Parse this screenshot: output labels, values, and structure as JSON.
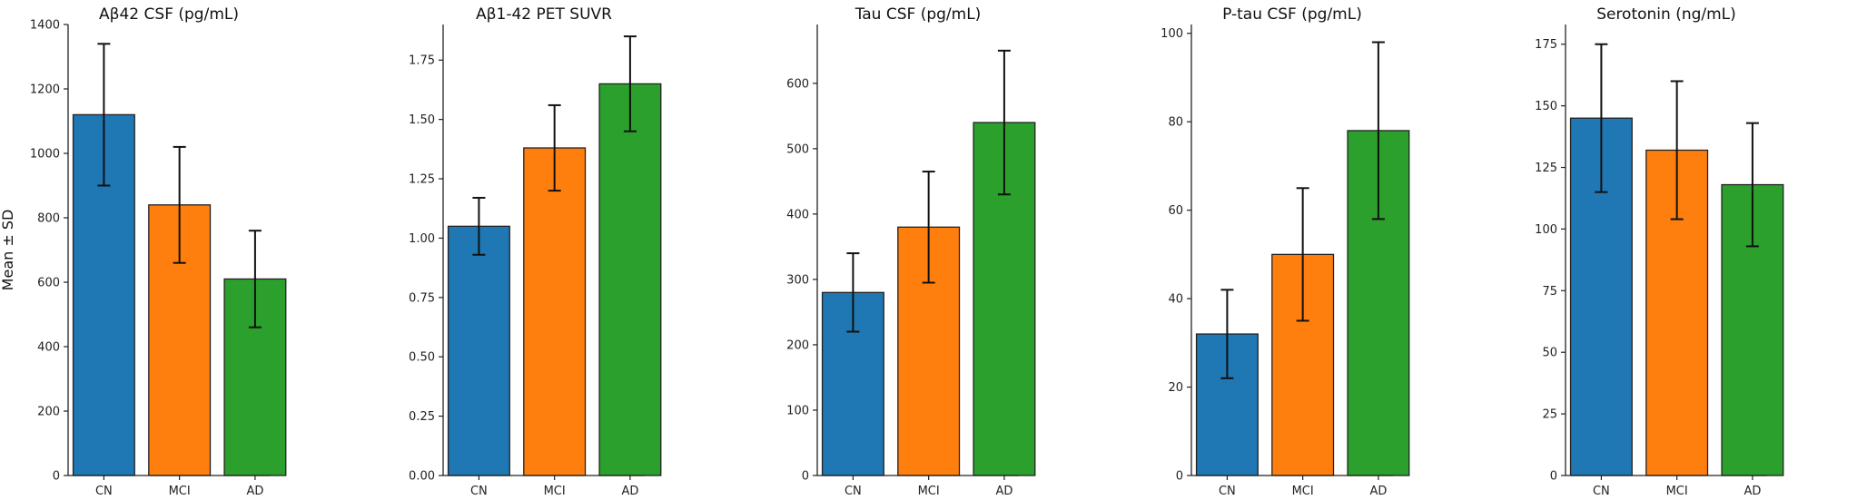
{
  "chart_data": [
    {
      "type": "bar",
      "title": "Aβ42 CSF (pg/mL)",
      "ylabel": "Mean ± SD",
      "categories": [
        "CN",
        "MCI",
        "AD"
      ],
      "values": [
        1120,
        840,
        610
      ],
      "errors": [
        220,
        180,
        150
      ],
      "ylim": [
        0,
        1400
      ],
      "yticks": [
        0,
        200,
        400,
        600,
        800,
        1000,
        1200,
        1400
      ],
      "ytick_labels": [
        "0",
        "200",
        "400",
        "600",
        "800",
        "1000",
        "1200",
        "1400"
      ]
    },
    {
      "type": "bar",
      "title": "Aβ1-42 PET SUVR",
      "ylabel": "",
      "categories": [
        "CN",
        "MCI",
        "AD"
      ],
      "values": [
        1.05,
        1.38,
        1.65
      ],
      "errors": [
        0.12,
        0.18,
        0.2
      ],
      "ylim": [
        0,
        1.9
      ],
      "yticks": [
        0,
        0.25,
        0.5,
        0.75,
        1.0,
        1.25,
        1.5,
        1.75
      ],
      "ytick_labels": [
        "0.00",
        "0.25",
        "0.50",
        "0.75",
        "1.00",
        "1.25",
        "1.50",
        "1.75"
      ]
    },
    {
      "type": "bar",
      "title": "Tau CSF (pg/mL)",
      "ylabel": "",
      "categories": [
        "CN",
        "MCI",
        "AD"
      ],
      "values": [
        280,
        380,
        540
      ],
      "errors": [
        60,
        85,
        110
      ],
      "ylim": [
        0,
        690
      ],
      "yticks": [
        0,
        100,
        200,
        300,
        400,
        500,
        600
      ],
      "ytick_labels": [
        "0",
        "100",
        "200",
        "300",
        "400",
        "500",
        "600"
      ]
    },
    {
      "type": "bar",
      "title": "P-tau CSF (pg/mL)",
      "ylabel": "",
      "categories": [
        "CN",
        "MCI",
        "AD"
      ],
      "values": [
        32,
        50,
        78
      ],
      "errors": [
        10,
        15,
        20
      ],
      "ylim": [
        0,
        102
      ],
      "yticks": [
        0,
        20,
        40,
        60,
        80,
        100
      ],
      "ytick_labels": [
        "0",
        "20",
        "40",
        "60",
        "80",
        "100"
      ]
    },
    {
      "type": "bar",
      "title": "Serotonin (ng/mL)",
      "ylabel": "",
      "categories": [
        "CN",
        "MCI",
        "AD"
      ],
      "values": [
        145,
        132,
        118
      ],
      "errors": [
        30,
        28,
        25
      ],
      "ylim": [
        0,
        183
      ],
      "yticks": [
        0,
        25,
        50,
        75,
        100,
        125,
        150,
        175
      ],
      "ytick_labels": [
        "0",
        "25",
        "50",
        "75",
        "100",
        "125",
        "150",
        "175"
      ]
    }
  ],
  "colors": {
    "CN": "#1f77b4",
    "MCI": "#ff7f0e",
    "AD": "#2ca02c"
  }
}
